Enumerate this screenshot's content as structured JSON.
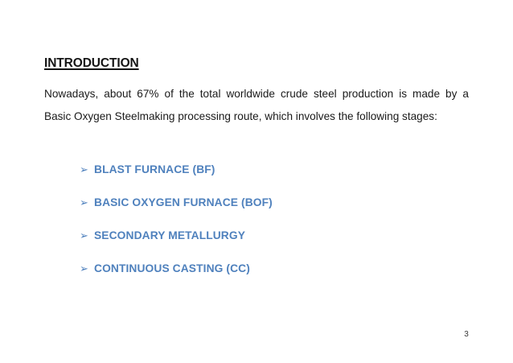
{
  "slide": {
    "title": "INTRODUCTION",
    "paragraph": {
      "line1": "Nowadays, about 67% of the total worldwide crude steel production is made by a",
      "line2": "Basic Oxygen Steelmaking processing route, which involves the following stages:"
    },
    "bullets": [
      {
        "marker": "➢",
        "label": "BLAST FURNACE (BF)"
      },
      {
        "marker": "➢",
        "label": "BASIC OXYGEN FURNACE (BOF)"
      },
      {
        "marker": "➢",
        "label": "SECONDARY METALLURGY"
      },
      {
        "marker": "➢",
        "label": "CONTINUOUS CASTING (CC)"
      }
    ],
    "page_number": "3",
    "colors": {
      "accent_blue": "#4F81BD",
      "body_text": "#1a1a1a",
      "title_text": "#141414",
      "background": "#ffffff"
    }
  }
}
